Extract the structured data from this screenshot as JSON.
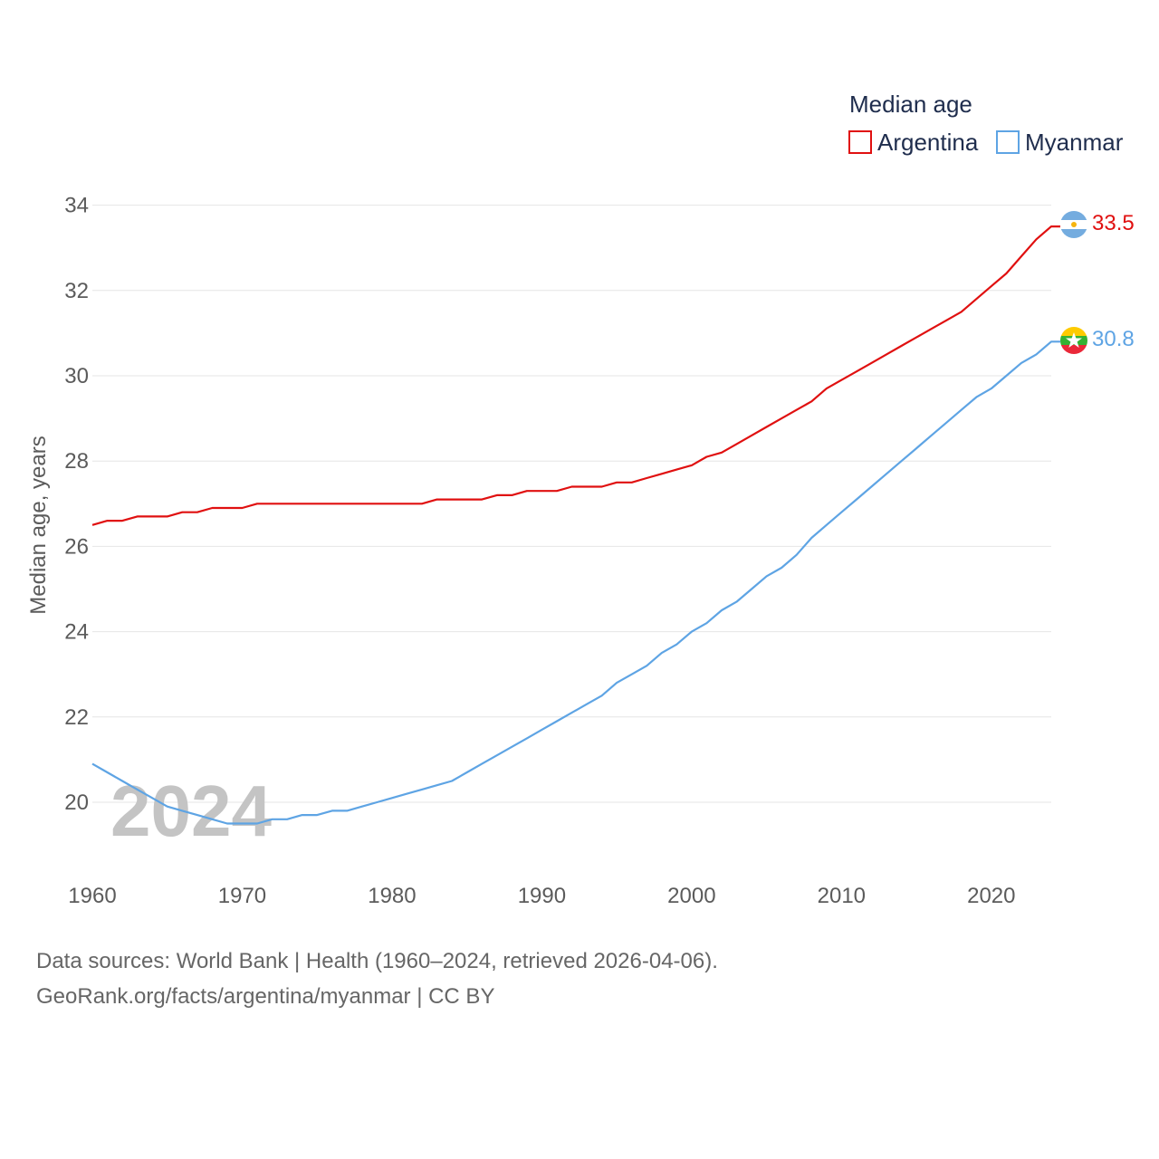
{
  "chart_data": {
    "type": "line",
    "title": "Median age",
    "xlabel": "",
    "ylabel": "Median age, years",
    "xlim": [
      1960,
      2024
    ],
    "ylim": [
      19,
      34
    ],
    "yticks": [
      20,
      22,
      24,
      26,
      28,
      30,
      32,
      34
    ],
    "xticks": [
      1960,
      1970,
      1980,
      1990,
      2000,
      2010,
      2020
    ],
    "watermark_year": "2024",
    "x": [
      1960,
      1961,
      1962,
      1963,
      1964,
      1965,
      1966,
      1967,
      1968,
      1969,
      1970,
      1971,
      1972,
      1973,
      1974,
      1975,
      1976,
      1977,
      1978,
      1979,
      1980,
      1981,
      1982,
      1983,
      1984,
      1985,
      1986,
      1987,
      1988,
      1989,
      1990,
      1991,
      1992,
      1993,
      1994,
      1995,
      1996,
      1997,
      1998,
      1999,
      2000,
      2001,
      2002,
      2003,
      2004,
      2005,
      2006,
      2007,
      2008,
      2009,
      2010,
      2011,
      2012,
      2013,
      2014,
      2015,
      2016,
      2017,
      2018,
      2019,
      2020,
      2021,
      2022,
      2023,
      2024
    ],
    "series": [
      {
        "name": "Argentina",
        "color": "#e01010",
        "end_label": "33.5",
        "values": [
          26.5,
          26.6,
          26.6,
          26.7,
          26.7,
          26.7,
          26.8,
          26.8,
          26.9,
          26.9,
          26.9,
          27.0,
          27.0,
          27.0,
          27.0,
          27.0,
          27.0,
          27.0,
          27.0,
          27.0,
          27.0,
          27.0,
          27.0,
          27.1,
          27.1,
          27.1,
          27.1,
          27.2,
          27.2,
          27.3,
          27.3,
          27.3,
          27.4,
          27.4,
          27.4,
          27.5,
          27.5,
          27.6,
          27.7,
          27.8,
          27.9,
          28.1,
          28.2,
          28.4,
          28.6,
          28.8,
          29.0,
          29.2,
          29.4,
          29.7,
          29.9,
          30.1,
          30.3,
          30.5,
          30.7,
          30.9,
          31.1,
          31.3,
          31.5,
          31.8,
          32.1,
          32.4,
          32.8,
          33.2,
          33.5
        ]
      },
      {
        "name": "Myanmar",
        "color": "#5ea4e4",
        "end_label": "30.8",
        "values": [
          20.9,
          20.7,
          20.5,
          20.3,
          20.1,
          19.9,
          19.8,
          19.7,
          19.6,
          19.5,
          19.5,
          19.5,
          19.6,
          19.6,
          19.7,
          19.7,
          19.8,
          19.8,
          19.9,
          20.0,
          20.1,
          20.2,
          20.3,
          20.4,
          20.5,
          20.7,
          20.9,
          21.1,
          21.3,
          21.5,
          21.7,
          21.9,
          22.1,
          22.3,
          22.5,
          22.8,
          23.0,
          23.2,
          23.5,
          23.7,
          24.0,
          24.2,
          24.5,
          24.7,
          25.0,
          25.3,
          25.5,
          25.8,
          26.2,
          26.5,
          26.8,
          27.1,
          27.4,
          27.7,
          28.0,
          28.3,
          28.6,
          28.9,
          29.2,
          29.5,
          29.7,
          30.0,
          30.3,
          30.5,
          30.8
        ]
      }
    ]
  },
  "footer": {
    "line1": "Data sources: World Bank | Health (1960–2024, retrieved 2026-04-06).",
    "line2": "GeoRank.org/facts/argentina/myanmar | CC BY"
  }
}
